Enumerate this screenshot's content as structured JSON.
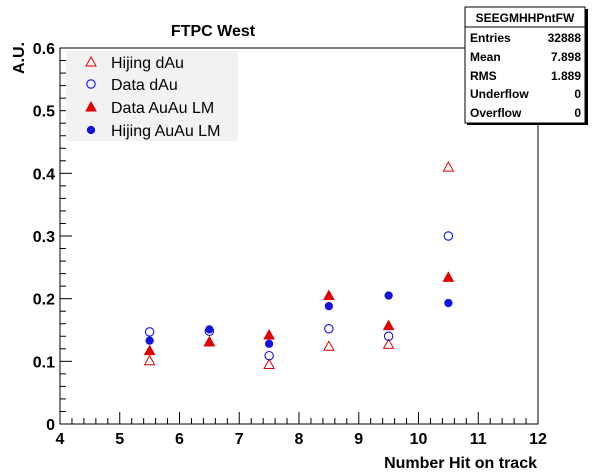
{
  "chart_data": {
    "type": "scatter",
    "title": "FTPC West",
    "xlabel": "Number Hit on track",
    "ylabel": "A.U.",
    "xlim": [
      4,
      12
    ],
    "ylim": [
      0,
      0.6
    ],
    "x_ticks": [
      "4",
      "5",
      "6",
      "7",
      "8",
      "9",
      "10",
      "11",
      "12"
    ],
    "y_ticks": [
      "0",
      "0.1",
      "0.2",
      "0.3",
      "0.4",
      "0.5",
      "0.6"
    ],
    "grid": false,
    "legend_position": "top-left",
    "series": [
      {
        "name": "Hijing dAu",
        "marker": "open-triangle",
        "color": "#e00000",
        "x": [
          5.5,
          6.5,
          7.5,
          8.5,
          9.5,
          10.5
        ],
        "y": [
          0.101,
          0.131,
          0.095,
          0.124,
          0.127,
          0.41
        ]
      },
      {
        "name": "Data dAu",
        "marker": "open-circle",
        "color": "#1010e0",
        "x": [
          5.5,
          6.5,
          7.5,
          8.5,
          9.5,
          10.5
        ],
        "y": [
          0.147,
          0.148,
          0.109,
          0.152,
          0.14,
          0.3
        ]
      },
      {
        "name": "Data AuAu LM",
        "marker": "filled-triangle",
        "color": "#e00000",
        "x": [
          5.5,
          6.5,
          7.5,
          8.5,
          9.5,
          10.5
        ],
        "y": [
          0.117,
          0.131,
          0.142,
          0.205,
          0.157,
          0.234
        ]
      },
      {
        "name": "Hijing AuAu LM",
        "marker": "filled-circle",
        "color": "#1010e0",
        "x": [
          5.5,
          6.5,
          7.5,
          8.5,
          9.5,
          10.5
        ],
        "y": [
          0.133,
          0.151,
          0.128,
          0.188,
          0.205,
          0.193
        ]
      }
    ],
    "stats_box": {
      "title": "SEEGMHHPntFW",
      "rows": [
        {
          "label": "Entries",
          "value": "32888"
        },
        {
          "label": "Mean",
          "value": "7.898"
        },
        {
          "label": "RMS",
          "value": "1.889"
        },
        {
          "label": "Underflow",
          "value": "0"
        },
        {
          "label": "Overflow",
          "value": "0"
        }
      ]
    }
  }
}
